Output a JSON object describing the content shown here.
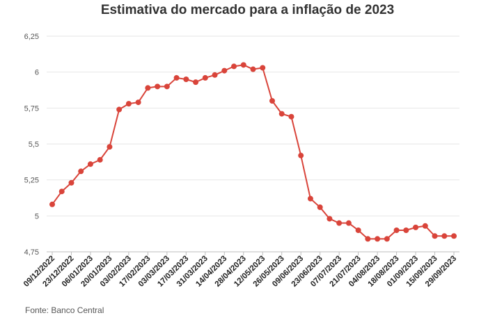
{
  "chart_data": {
    "type": "line",
    "title": "Estimativa do mercado para a inflação de 2023",
    "xlabel": "",
    "ylabel": "",
    "ylim": [
      4.75,
      6.25
    ],
    "yticks": [
      "4,75",
      "5",
      "5,25",
      "5,5",
      "5,75",
      "6",
      "6,25"
    ],
    "ytick_values": [
      4.75,
      5.0,
      5.25,
      5.5,
      5.75,
      6.0,
      6.25
    ],
    "xtick_labels": [
      "09/12/2022",
      "23/12/2022",
      "06/01/2023",
      "20/01/2023",
      "03/02/2023",
      "17/02/2023",
      "03/03/2023",
      "17/03/2023",
      "31/03/2023",
      "14/04/2023",
      "28/04/2023",
      "12/05/2023",
      "26/05/2023",
      "09/06/2023",
      "23/06/2023",
      "07/07/2023",
      "21/07/2023",
      "04/08/2023",
      "18/08/2023",
      "01/09/2023",
      "15/09/2023",
      "29/09/2023"
    ],
    "grid": true,
    "color": "#d9443a",
    "series": [
      {
        "x": [
          "09/12/2022",
          "16/12/2022",
          "23/12/2022",
          "30/12/2022",
          "06/01/2023",
          "13/01/2023",
          "20/01/2023",
          "27/01/2023",
          "03/02/2023",
          "10/02/2023",
          "17/02/2023",
          "24/02/2023",
          "03/03/2023",
          "10/03/2023",
          "17/03/2023",
          "24/03/2023",
          "31/03/2023",
          "07/04/2023",
          "14/04/2023",
          "21/04/2023",
          "28/04/2023",
          "05/05/2023",
          "12/05/2023",
          "19/05/2023",
          "26/05/2023",
          "02/06/2023",
          "09/06/2023",
          "16/06/2023",
          "23/06/2023",
          "30/06/2023",
          "07/07/2023",
          "14/07/2023",
          "21/07/2023",
          "28/07/2023",
          "04/08/2023",
          "11/08/2023",
          "18/08/2023",
          "25/08/2023",
          "01/09/2023",
          "08/09/2023",
          "15/09/2023",
          "22/09/2023",
          "29/09/2023"
        ],
        "values": [
          5.08,
          5.17,
          5.23,
          5.31,
          5.36,
          5.39,
          5.48,
          5.74,
          5.78,
          5.79,
          5.89,
          5.9,
          5.9,
          5.96,
          5.95,
          5.93,
          5.96,
          5.98,
          6.01,
          6.04,
          6.05,
          6.02,
          6.03,
          5.8,
          5.71,
          5.69,
          5.42,
          5.12,
          5.06,
          4.98,
          4.95,
          4.95,
          4.9,
          4.84,
          4.84,
          4.84,
          4.9,
          4.9,
          4.92,
          4.93,
          4.86,
          4.86,
          4.86
        ]
      }
    ]
  },
  "source": "Fonte: Banco Central"
}
